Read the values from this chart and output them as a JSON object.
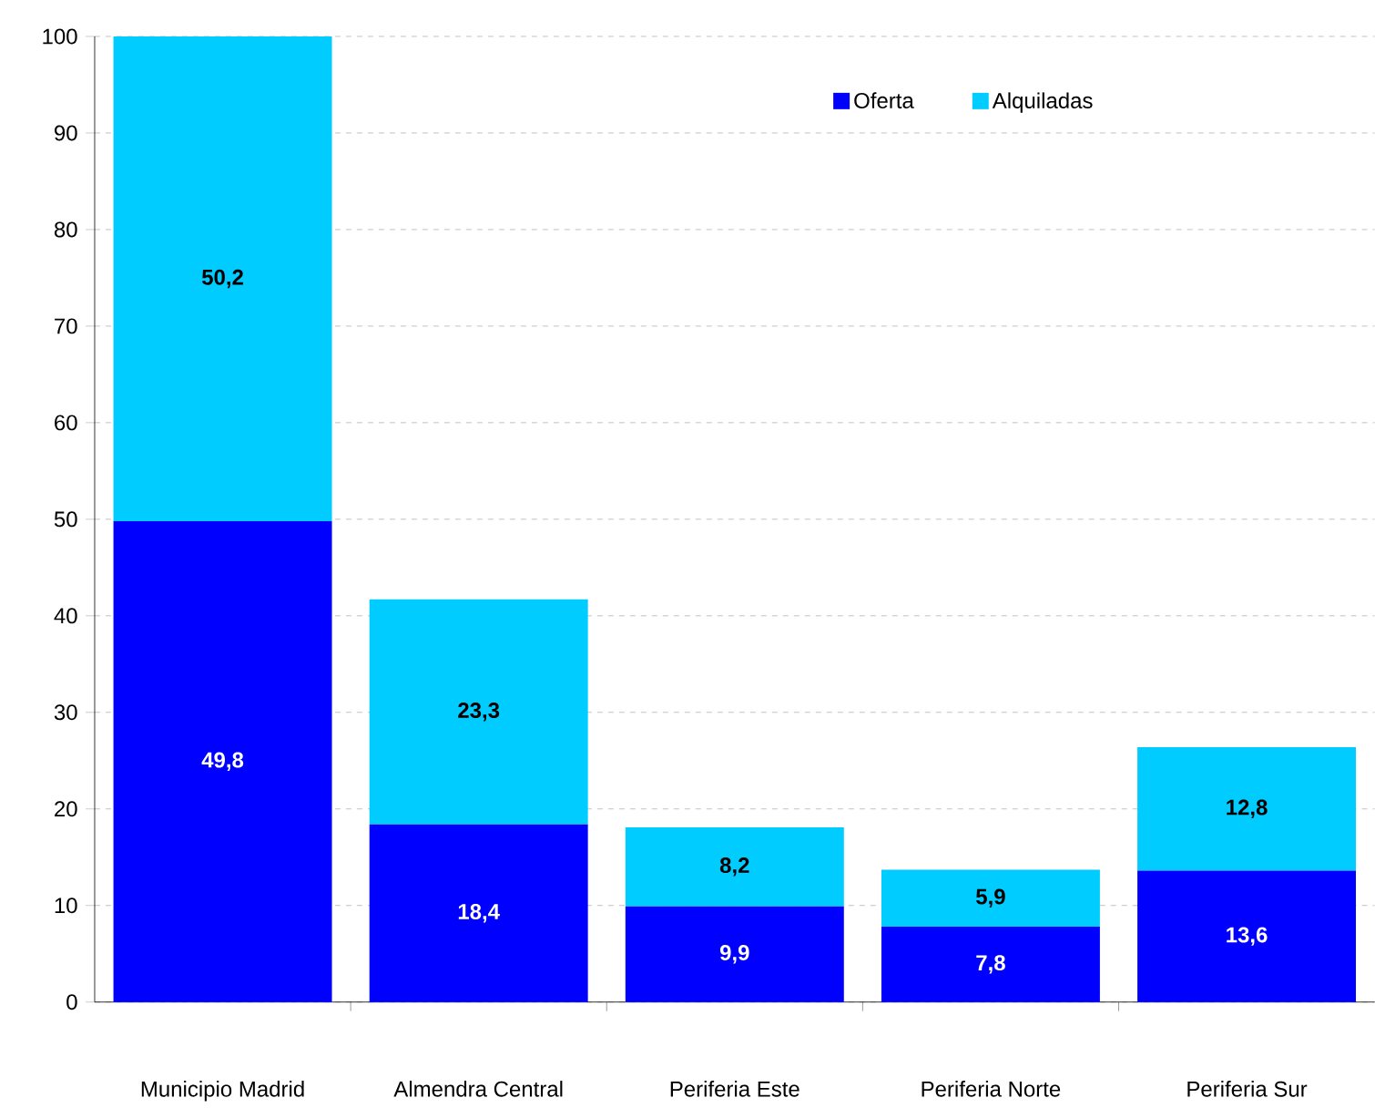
{
  "chart_data": {
    "type": "bar",
    "stacked": true,
    "categories": [
      "Municipio Madrid",
      "Almendra Central",
      "Periferia Este",
      "Periferia Norte",
      "Periferia Sur"
    ],
    "series": [
      {
        "name": "Oferta",
        "color": "#0000ff",
        "values": [
          49.8,
          18.4,
          9.9,
          7.8,
          13.6
        ],
        "value_labels": [
          "49,8",
          "18,4",
          "9,9",
          "7,8",
          "13,6"
        ]
      },
      {
        "name": "Alquiladas",
        "color": "#00ccff",
        "values": [
          50.2,
          23.3,
          8.2,
          5.9,
          12.8
        ],
        "value_labels": [
          "50,2",
          "23,3",
          "8,2",
          "5,9",
          "12,8"
        ]
      }
    ],
    "ylim": [
      0,
      100
    ],
    "yticks": [
      0,
      10,
      20,
      30,
      40,
      50,
      60,
      70,
      80,
      90,
      100
    ],
    "grid": "y",
    "legend": "top"
  }
}
